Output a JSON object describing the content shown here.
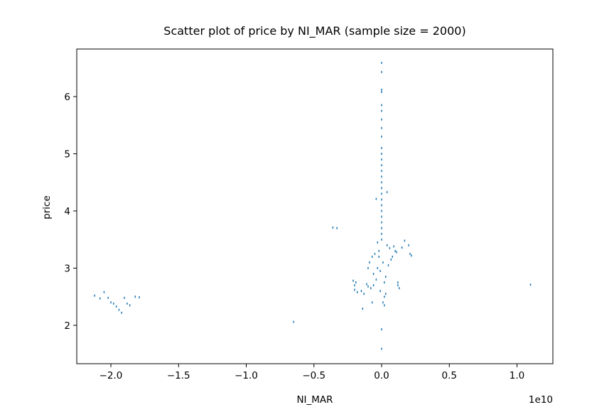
{
  "chart_data": {
    "type": "scatter",
    "title": "Scatter plot of price by NI_MAR (sample size = 2000)",
    "x_label": "NI_MAR",
    "y_label": "price",
    "x_offset_label": "1e10",
    "color": "#1f77b4",
    "xlim": [
      -2.252,
      1.265
    ],
    "ylim": [
      1.329,
      6.832
    ],
    "xticks": [
      {
        "value": -2.0,
        "label": "−2.0"
      },
      {
        "value": -1.5,
        "label": "−1.5"
      },
      {
        "value": -1.0,
        "label": "−1.0"
      },
      {
        "value": -0.5,
        "label": "−0.5"
      },
      {
        "value": 0.0,
        "label": "0.0"
      },
      {
        "value": 0.5,
        "label": "0.5"
      },
      {
        "value": 1.0,
        "label": "1.0"
      }
    ],
    "yticks": [
      2,
      3,
      4,
      5,
      6
    ],
    "x": [
      -2.12,
      -2.08,
      -2.05,
      -2.02,
      -2.0,
      -1.98,
      -1.96,
      -1.94,
      -1.92,
      -1.9,
      -1.88,
      -1.86,
      -1.82,
      -1.79,
      -0.65,
      -0.36,
      -0.33,
      0,
      0,
      0,
      0,
      0,
      0,
      0,
      0,
      0,
      0,
      0,
      0,
      0,
      0,
      0,
      0,
      0,
      0,
      0,
      0,
      0,
      0,
      0,
      0,
      0,
      0,
      0,
      0,
      0.04,
      -0.04,
      0.2,
      0.1,
      0.08,
      0.21,
      0.22,
      0.12,
      0.13,
      0.12,
      1.1,
      -0.2,
      -0.2,
      -0.19,
      -0.15,
      -0.13,
      -0.1,
      -0.08,
      -0.06,
      -0.14,
      -0.07,
      -0.04,
      -0.03,
      -0.02,
      -0.07,
      -0.09,
      -0.06,
      -0.1,
      -0.21,
      -0.18,
      -0.11,
      0.01,
      0.02,
      -0.01,
      0.03,
      0.05,
      -0.02,
      0.04,
      0.06,
      0.01,
      -0.01,
      0.02,
      0.03,
      -0.03,
      0.07,
      0.09,
      0.11,
      0.15,
      0.17,
      0.02,
      -0.05
    ],
    "y": [
      2.52,
      2.47,
      2.58,
      2.48,
      2.4,
      2.38,
      2.33,
      2.27,
      2.22,
      2.48,
      2.38,
      2.35,
      2.5,
      2.49,
      2.06,
      3.71,
      3.7,
      1.59,
      1.93,
      6.59,
      6.43,
      6.12,
      6.08,
      5.85,
      5.75,
      5.6,
      5.45,
      5.3,
      5.1,
      5.0,
      4.9,
      4.8,
      4.7,
      4.6,
      4.5,
      4.4,
      4.3,
      4.2,
      4.1,
      4.0,
      3.9,
      3.8,
      3.7,
      3.6,
      3.5,
      4.33,
      4.21,
      3.4,
      3.3,
      3.2,
      3.25,
      3.22,
      2.7,
      2.65,
      2.75,
      2.71,
      2.7,
      2.62,
      2.75,
      2.6,
      2.55,
      2.68,
      2.65,
      2.7,
      2.29,
      2.4,
      2.8,
      3.0,
      3.2,
      3.2,
      3.1,
      2.9,
      3.0,
      2.78,
      2.58,
      2.72,
      2.4,
      2.5,
      2.6,
      2.85,
      3.05,
      3.3,
      3.4,
      3.35,
      3.1,
      2.95,
      2.75,
      2.55,
      3.45,
      3.15,
      3.38,
      3.28,
      3.36,
      3.48,
      2.35,
      3.25
    ]
  }
}
